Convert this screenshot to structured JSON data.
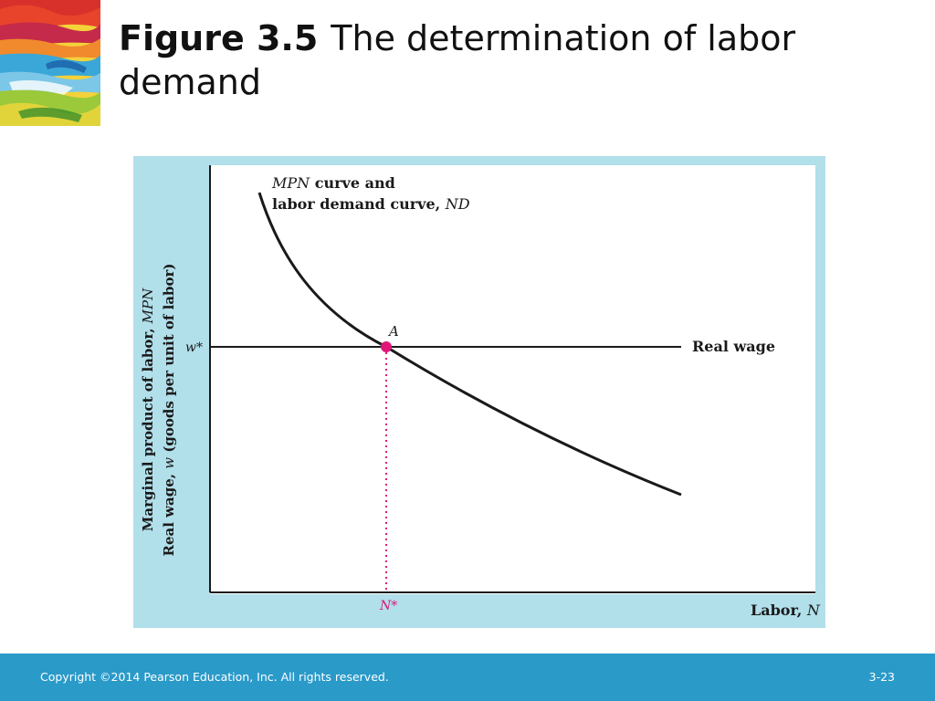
{
  "slide": {
    "figure_number": "Figure 3.5",
    "title": "The determination of labor demand"
  },
  "diagram": {
    "y_axis_label_line1_prefix": "Marginal product of labor, ",
    "y_axis_label_line1_var": "MPN",
    "y_axis_label_line2_prefix": "Real wage, ",
    "y_axis_label_line2_var": "w",
    "y_axis_label_line2_suffix": " (goods per unit of labor)",
    "x_axis_label_prefix": "Labor, ",
    "x_axis_label_var": "N",
    "curve_label_line1_var": "MPN",
    "curve_label_line1_suffix": " curve and",
    "curve_label_line2_prefix": "labor demand curve, ",
    "curve_label_line2_var": "ND",
    "real_wage_label": "Real wage",
    "wage_tick_label": "w*",
    "labor_tick_label": "N*",
    "point_label": "A",
    "colors": {
      "panel_background": "#b1dfea",
      "plot_background": "#ffffff",
      "curve": "#1a1a1a",
      "point": "#e0157a",
      "dotted_line": "#e0157a"
    }
  },
  "footer": {
    "copyright": "Copyright ©2014 Pearson Education, Inc. All rights reserved.",
    "page_number": "3-23"
  }
}
